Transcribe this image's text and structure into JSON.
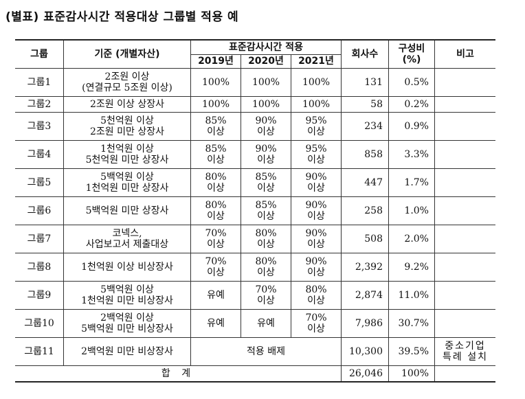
{
  "title": "(별표) 표준감사시간 적용대상 그룹별 적용 예",
  "headers": {
    "group": "그룹",
    "criteria": "기준 (개별자산)",
    "std_time": "표준감사시간 적용",
    "y2019": "2019년",
    "y2020": "2020년",
    "y2021": "2021년",
    "companies": "회사수",
    "ratio_line1": "구성비",
    "ratio_line2": "(%)",
    "note": "비고"
  },
  "rows": [
    {
      "group": "그룹1",
      "c1": "2조원 이상",
      "c2": "(연결규모 5조원 이상)",
      "r19a": "100%",
      "r19b": "",
      "r20a": "100%",
      "r20b": "",
      "r21a": "100%",
      "r21b": "",
      "count": "131",
      "ratio": "0.5%",
      "note1": "",
      "note2": ""
    },
    {
      "group": "그룹2",
      "c1": "2조원 이상 상장사",
      "c2": "",
      "r19a": "100%",
      "r19b": "",
      "r20a": "100%",
      "r20b": "",
      "r21a": "100%",
      "r21b": "",
      "count": "58",
      "ratio": "0.2%",
      "note1": "",
      "note2": ""
    },
    {
      "group": "그룹3",
      "c1": "5천억원 이상",
      "c2": "2조원 미만 상장사",
      "r19a": "85%",
      "r19b": "이상",
      "r20a": "90%",
      "r20b": "이상",
      "r21a": "95%",
      "r21b": "이상",
      "count": "234",
      "ratio": "0.9%",
      "note1": "",
      "note2": ""
    },
    {
      "group": "그룹4",
      "c1": "1천억원 이상",
      "c2": "5천억원 미만 상장사",
      "r19a": "85%",
      "r19b": "이상",
      "r20a": "90%",
      "r20b": "이상",
      "r21a": "95%",
      "r21b": "이상",
      "count": "858",
      "ratio": "3.3%",
      "note1": "",
      "note2": ""
    },
    {
      "group": "그룹5",
      "c1": "5백억원 이상",
      "c2": "1천억원 미만 상장사",
      "r19a": "80%",
      "r19b": "이상",
      "r20a": "85%",
      "r20b": "이상",
      "r21a": "90%",
      "r21b": "이상",
      "count": "447",
      "ratio": "1.7%",
      "note1": "",
      "note2": ""
    },
    {
      "group": "그룹6",
      "c1": "5백억원 미만 상장사",
      "c2": "",
      "r19a": "80%",
      "r19b": "이상",
      "r20a": "85%",
      "r20b": "이상",
      "r21a": "90%",
      "r21b": "이상",
      "count": "258",
      "ratio": "1.0%",
      "note1": "",
      "note2": ""
    },
    {
      "group": "그룹7",
      "c1": "코넥스,",
      "c2": "사업보고서 제출대상",
      "r19a": "70%",
      "r19b": "이상",
      "r20a": "80%",
      "r20b": "이상",
      "r21a": "90%",
      "r21b": "이상",
      "count": "508",
      "ratio": "2.0%",
      "note1": "",
      "note2": ""
    },
    {
      "group": "그룹8",
      "c1": "1천억원 이상 비상장사",
      "c2": "",
      "r19a": "70%",
      "r19b": "이상",
      "r20a": "80%",
      "r20b": "이상",
      "r21a": "90%",
      "r21b": "이상",
      "count": "2,392",
      "ratio": "9.2%",
      "note1": "",
      "note2": ""
    },
    {
      "group": "그룹9",
      "c1": "5백억원 이상",
      "c2": "1천억원 미만 비상장사",
      "r19a": "유예",
      "r19b": "",
      "r20a": "70%",
      "r20b": "이상",
      "r21a": "80%",
      "r21b": "이상",
      "count": "2,874",
      "ratio": "11.0%",
      "note1": "",
      "note2": ""
    },
    {
      "group": "그룹10",
      "c1": "2백억원 이상",
      "c2": "5백억원 미만 비상장사",
      "r19a": "유예",
      "r19b": "",
      "r20a": "유예",
      "r20b": "",
      "r21a": "70%",
      "r21b": "이상",
      "count": "7,986",
      "ratio": "30.7%",
      "note1": "",
      "note2": ""
    },
    {
      "group": "그룹11",
      "c1": "2백억원 미만 비상장사",
      "c2": "",
      "merged": "적용 배제",
      "count": "10,300",
      "ratio": "39.5%",
      "note1": "중소기업",
      "note2": "특례 설치"
    }
  ],
  "total": {
    "label": "합 계",
    "count": "26,046",
    "ratio": "100%"
  }
}
